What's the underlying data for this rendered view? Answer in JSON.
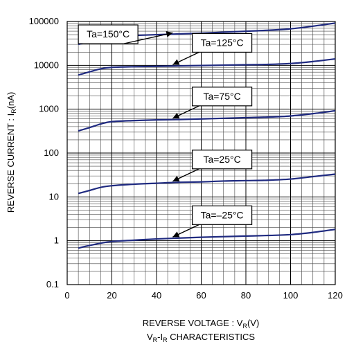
{
  "chart_data": {
    "type": "line",
    "xlabel_prefix": "REVERSE VOLTAGE : V",
    "xlabel_sub": "R",
    "xlabel_suffix": "(V)",
    "ylabel_prefix": "REVERSE CURRENT : I",
    "ylabel_sub": "R",
    "ylabel_suffix": "(nA)",
    "caption_a": "V",
    "caption_a_sub": "R",
    "caption_b": "-I",
    "caption_b_sub": "R",
    "caption_c": " CHARACTERISTICS",
    "x_range": [
      0,
      120
    ],
    "y_range": [
      0.1,
      100000
    ],
    "y_scale": "log",
    "x_ticks": [
      "0",
      "20",
      "40",
      "60",
      "80",
      "100",
      "120"
    ],
    "y_ticks": [
      "0.1",
      "1",
      "10",
      "100",
      "1000",
      "10000",
      "100000"
    ],
    "grid": true,
    "line_color": "#1f2a80",
    "series": [
      {
        "name": "Ta=150°C",
        "x": [
          5,
          10,
          15,
          20,
          30,
          40,
          50,
          60,
          70,
          80,
          90,
          100,
          110,
          120
        ],
        "y": [
          30000,
          35000,
          42000,
          46000,
          48000,
          50000,
          52000,
          54000,
          57000,
          60000,
          63000,
          68000,
          78000,
          92000
        ]
      },
      {
        "name": "Ta=125°C",
        "x": [
          5,
          10,
          15,
          20,
          30,
          40,
          50,
          60,
          70,
          80,
          90,
          100,
          110,
          120
        ],
        "y": [
          6000,
          7100,
          8300,
          9000,
          9300,
          9500,
          9700,
          9900,
          10100,
          10300,
          10500,
          11000,
          12200,
          14000
        ]
      },
      {
        "name": "Ta=75°C",
        "x": [
          5,
          10,
          15,
          20,
          30,
          40,
          50,
          60,
          70,
          80,
          90,
          100,
          110,
          120
        ],
        "y": [
          320,
          380,
          460,
          520,
          550,
          570,
          580,
          600,
          620,
          640,
          660,
          700,
          790,
          920
        ]
      },
      {
        "name": "Ta=25°C",
        "x": [
          5,
          10,
          15,
          20,
          30,
          40,
          50,
          60,
          70,
          80,
          90,
          100,
          110,
          120
        ],
        "y": [
          12,
          14,
          16.5,
          18,
          19.5,
          20.5,
          21.5,
          22,
          23,
          23.5,
          24,
          25.5,
          29,
          33
        ]
      },
      {
        "name": "Ta=–25°C",
        "x": [
          5,
          10,
          15,
          20,
          30,
          40,
          50,
          60,
          70,
          80,
          90,
          100,
          110,
          120
        ],
        "y": [
          0.68,
          0.78,
          0.88,
          0.96,
          1.03,
          1.1,
          1.15,
          1.2,
          1.24,
          1.28,
          1.32,
          1.38,
          1.55,
          1.82
        ]
      }
    ]
  }
}
